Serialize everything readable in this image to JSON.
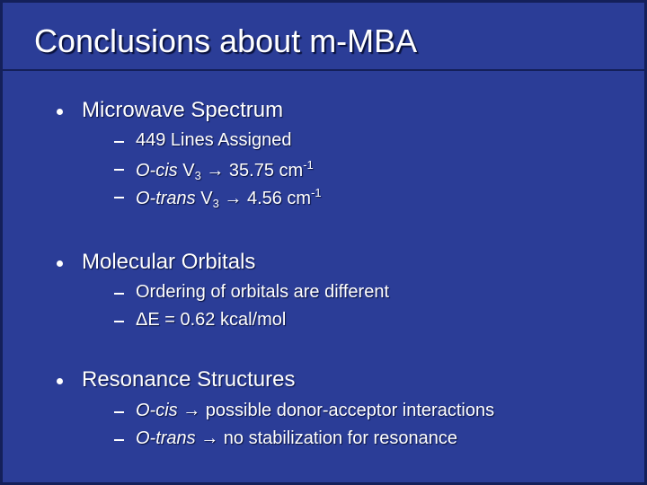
{
  "title": "Conclusions about m-MBA",
  "bullets": [
    {
      "text": "Microwave Spectrum",
      "items": [
        [
          {
            "text": "449 Lines Assigned"
          }
        ],
        [
          {
            "text": "O-cis",
            "format": "italic"
          },
          {
            "text": " V"
          },
          {
            "text": "3",
            "format": "sub"
          },
          {
            "text": " → 35.75 cm"
          },
          {
            "text": "-1",
            "format": "sup"
          }
        ],
        [
          {
            "text": "O-trans",
            "format": "italic"
          },
          {
            "text": " V"
          },
          {
            "text": "3",
            "format": "sub"
          },
          {
            "text": " → 4.56 cm"
          },
          {
            "text": "-1",
            "format": "sup"
          }
        ]
      ]
    },
    {
      "text": "Molecular Orbitals",
      "items": [
        [
          {
            "text": "Ordering of orbitals are different"
          }
        ],
        [
          {
            "text": "ΔE = 0.62 kcal/mol"
          }
        ]
      ]
    },
    {
      "text": "Resonance Structures",
      "items": [
        [
          {
            "text": "O-cis",
            "format": "italic"
          },
          {
            "text": " → possible donor-acceptor interactions"
          }
        ],
        [
          {
            "text": "O-trans",
            "format": "italic"
          },
          {
            "text": " → no stabilization for resonance"
          }
        ]
      ]
    }
  ]
}
